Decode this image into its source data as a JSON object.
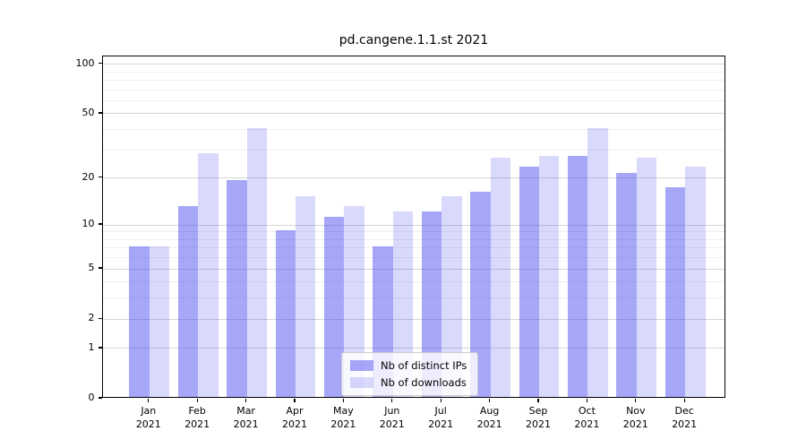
{
  "title": "pd.cangene.1.1.st 2021",
  "chart_data": {
    "type": "bar",
    "title": "pd.cangene.1.1.st 2021",
    "categories": [
      "Jan 2021",
      "Feb 2021",
      "Mar 2021",
      "Apr 2021",
      "May 2021",
      "Jun 2021",
      "Jul 2021",
      "Aug 2021",
      "Sep 2021",
      "Oct 2021",
      "Nov 2021",
      "Dec 2021"
    ],
    "month_line1": [
      "Jan",
      "Feb",
      "Mar",
      "Apr",
      "May",
      "Jun",
      "Jul",
      "Aug",
      "Sep",
      "Oct",
      "Nov",
      "Dec"
    ],
    "month_line2": [
      "2021",
      "2021",
      "2021",
      "2021",
      "2021",
      "2021",
      "2021",
      "2021",
      "2021",
      "2021",
      "2021",
      "2021"
    ],
    "series": [
      {
        "name": "Nb of distinct IPs",
        "color": "rgba(64,64,240,0.46)",
        "values": [
          7,
          13,
          19,
          9,
          11,
          7,
          12,
          16,
          23,
          27,
          21,
          17
        ]
      },
      {
        "name": "Nb of downloads",
        "color": "rgba(64,64,240,0.20)",
        "values": [
          7,
          28,
          40,
          15,
          13,
          12,
          15,
          26,
          27,
          40,
          26,
          23
        ]
      }
    ],
    "xlabel": "",
    "ylabel": "",
    "yscale": "log1p",
    "ylim": [
      0,
      111.5
    ],
    "yticks_major": [
      100,
      50,
      20,
      10,
      5,
      2,
      1,
      0
    ],
    "yticks_minor": [
      90,
      80,
      70,
      60,
      40,
      30,
      9,
      8,
      7,
      6,
      4,
      3
    ],
    "grid": true,
    "legend_position": "bottom-center"
  },
  "legend": {
    "entries": [
      {
        "label": "Nb of distinct IPs",
        "color": "rgba(64,64,240,0.46)"
      },
      {
        "label": "Nb of downloads",
        "color": "rgba(64,64,240,0.20)"
      }
    ]
  },
  "colors": {
    "bar_distinct_ips": "#a7a7f8",
    "bar_downloads": "#d9d9fb",
    "grid_major": "#d6d6d6",
    "grid_minor": "#efefef",
    "axis": "#000000",
    "background": "#ffffff"
  }
}
